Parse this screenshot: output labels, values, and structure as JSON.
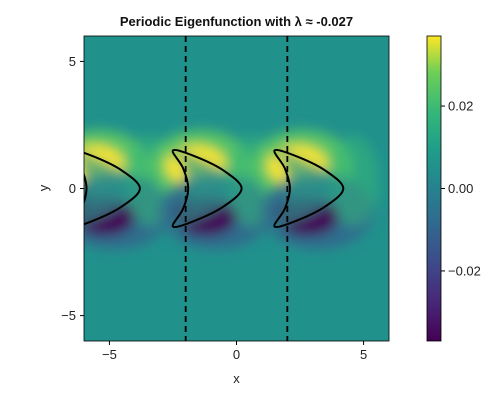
{
  "chart_data": {
    "type": "heatmap",
    "title": "Periodic Eigenfunction with λ ≈ -0.027",
    "xlabel": "x",
    "ylabel": "y",
    "xlim": [
      -6,
      6
    ],
    "ylim": [
      -6,
      6
    ],
    "x_ticks": [
      -5,
      0,
      5
    ],
    "y_ticks": [
      -5,
      0,
      5
    ],
    "x_tick_labels": [
      "−5",
      "0",
      "5"
    ],
    "y_tick_labels": [
      "−5",
      "0",
      "5"
    ],
    "colormap": "viridis",
    "colorbar": {
      "range": [
        -0.037,
        0.037
      ],
      "ticks": [
        -0.02,
        0.0,
        0.02
      ],
      "tick_labels": [
        "−0.02",
        "0.00",
        "0.02"
      ]
    },
    "period_boundaries_x": [
      -2,
      2
    ],
    "period_boundary_style": "dashed",
    "obstacle_centers_x": [
      -5,
      -1,
      3
    ],
    "obstacle_shape": "crescent (kite-shaped) boundary, opening to the left, curve drawn in black",
    "eigenvalue": -0.027,
    "field_description": "dipole-like field around each obstacle: positive (yellow) lobe above-left, negative (purple) lobe below, near zero far away"
  }
}
